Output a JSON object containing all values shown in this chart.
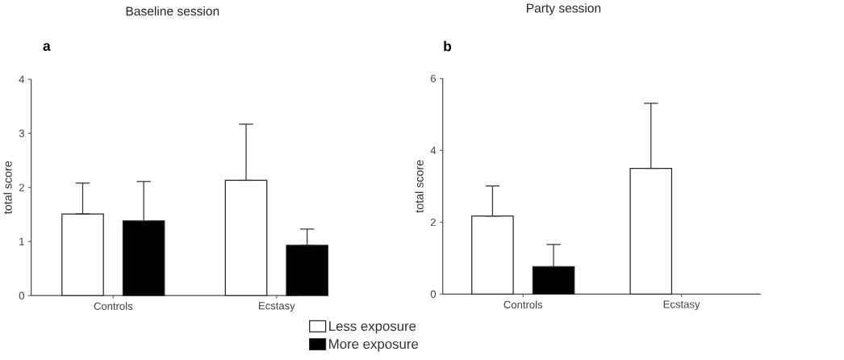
{
  "chart_data": [
    {
      "type": "bar",
      "title": "Baseline session",
      "annotations": [
        "a"
      ],
      "ylabel": "total score",
      "categories": [
        "Controls",
        "Ecstasy"
      ],
      "series": [
        {
          "name": "Less exposure",
          "color": "#ffffff",
          "values": [
            1.51,
            2.13
          ],
          "errors": [
            [
              1.51,
              2.08
            ],
            [
              2.13,
              3.17
            ]
          ]
        },
        {
          "name": "More exposure",
          "color": "#000000",
          "values": [
            1.38,
            0.93
          ],
          "errors": [
            [
              1.38,
              2.11
            ],
            [
              0.93,
              1.23
            ]
          ]
        }
      ],
      "ylim": [
        0,
        4
      ],
      "yticks": [
        0,
        1,
        2,
        3,
        4
      ],
      "legend": "bottom right"
    },
    {
      "type": "bar",
      "title": "Party session",
      "annotations": [
        "b"
      ],
      "ylabel": "total score",
      "categories": [
        "Controls",
        "Ecstasy"
      ],
      "series": [
        {
          "color": "#ffffff",
          "values": [
            2.17,
            3.5
          ],
          "errors": [
            [
              2.17,
              3.01
            ],
            [
              3.5,
              5.31
            ]
          ]
        },
        {
          "color": "#000000",
          "values": [
            0.76,
            null
          ],
          "errors": [
            [
              0.76,
              1.38
            ],
            null
          ]
        }
      ],
      "ylim": [
        0,
        6
      ],
      "yticks": [
        0,
        2,
        4,
        6
      ]
    }
  ]
}
